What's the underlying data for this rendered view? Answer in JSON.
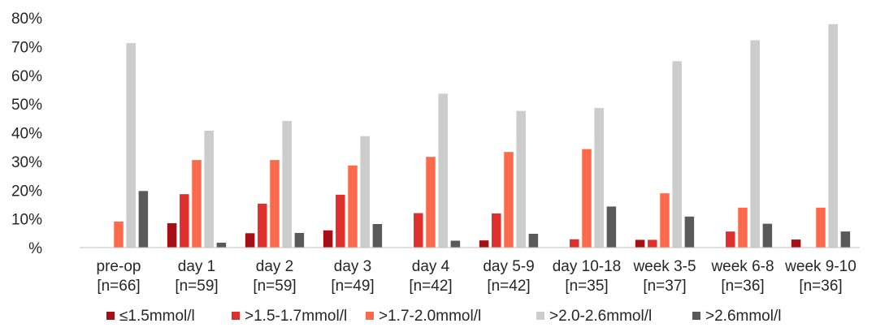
{
  "chart_data": {
    "type": "bar",
    "categories": [
      [
        "pre-op",
        "[n=66]"
      ],
      [
        "day 1",
        "[n=59]"
      ],
      [
        "day 2",
        "[n=59]"
      ],
      [
        "day 3",
        "[n=49]"
      ],
      [
        "day 4",
        "[n=42]"
      ],
      [
        "day 5-9",
        "[n=42]"
      ],
      [
        "day 10-18",
        "[n=35]"
      ],
      [
        "week 3-5",
        "[n=37]"
      ],
      [
        "week 6-8",
        "[n=36]"
      ],
      [
        "week 9-10",
        "[n=36]"
      ]
    ],
    "series": [
      {
        "name": "≤1.5mmol/l",
        "color": "#a50f15",
        "values": [
          0,
          8.5,
          5,
          6,
          0,
          2.5,
          0,
          2.7,
          0,
          2.8
        ]
      },
      {
        "name": ">1.5-1.7mmol/l",
        "color": "#e0302e",
        "values": [
          0,
          18.6,
          15.3,
          18.4,
          12,
          11.9,
          2.9,
          2.7,
          5.6,
          0
        ]
      },
      {
        "name": ">1.7-2.0mmol/l",
        "color": "#fb6a4a",
        "values": [
          9.1,
          30.5,
          30.5,
          28.6,
          31.6,
          33.3,
          34.3,
          18.9,
          13.9,
          13.9
        ]
      },
      {
        "name": ">2.0-2.6mmol/l",
        "color": "#cccccc",
        "values": [
          71.2,
          40.7,
          44.1,
          38.8,
          53.6,
          47.6,
          48.6,
          64.9,
          72.2,
          77.8
        ]
      },
      {
        "name": ">2.6mmol/l",
        "color": "#595959",
        "values": [
          19.7,
          1.7,
          5.1,
          8.2,
          2.4,
          4.8,
          14.3,
          10.8,
          8.3,
          5.6
        ]
      }
    ],
    "ylim": [
      0,
      80
    ],
    "yticks": [
      "%",
      "10%",
      "20%",
      "30%",
      "40%",
      "50%",
      "60%",
      "70%",
      "80%"
    ],
    "grid": false,
    "legend": "bottom"
  }
}
